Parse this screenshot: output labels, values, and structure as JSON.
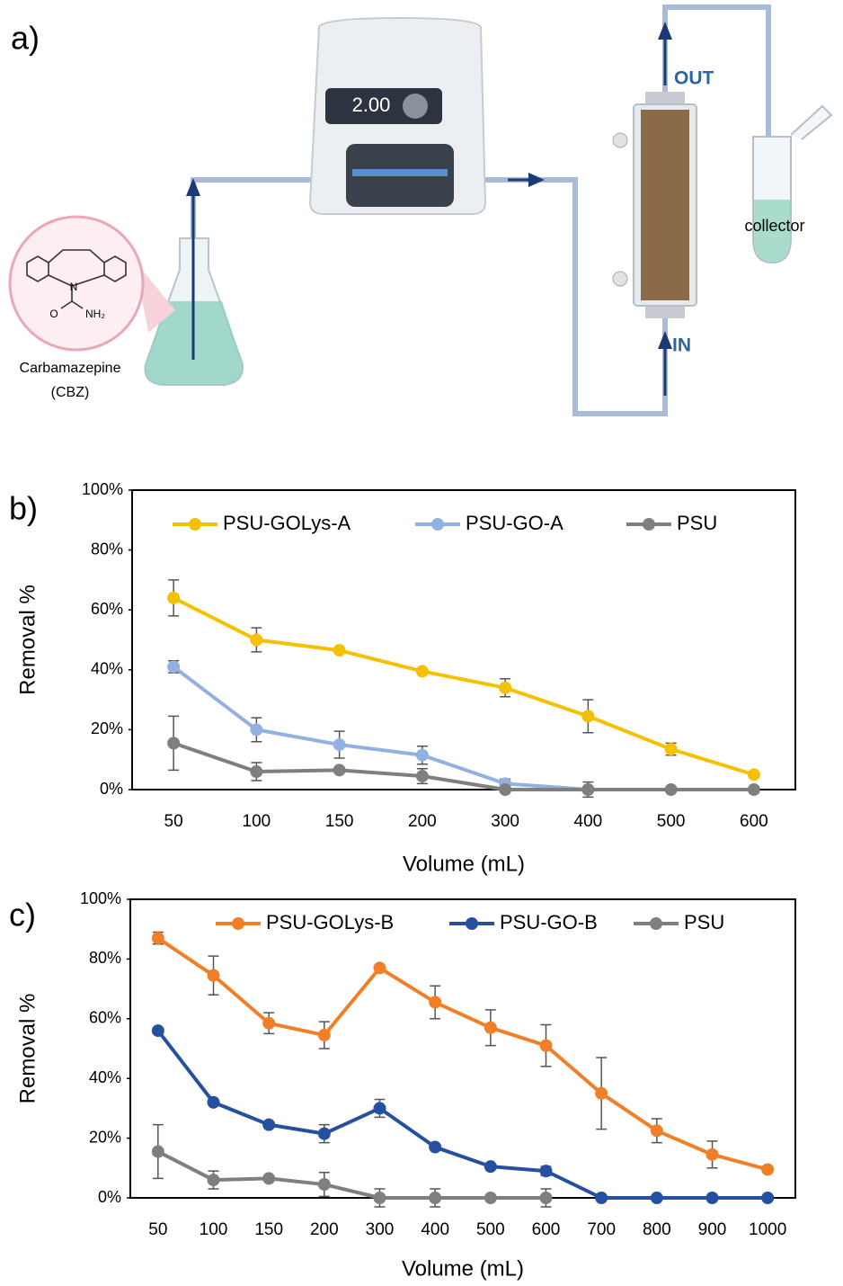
{
  "diagram": {
    "panel_label": "a)",
    "pump_display": "2.00",
    "out_label": "OUT",
    "in_label": "IN",
    "collector_label": "collector",
    "molecule": {
      "name": "Carbamazepine",
      "abbreviation": "(CBZ)",
      "atoms": [
        "N",
        "O",
        "NH₂"
      ]
    }
  },
  "chart_data": [
    {
      "type": "line",
      "panel_label": "b)",
      "xlabel": "Volume (mL)",
      "ylabel": "Removal %",
      "legend": "top",
      "categories": [
        "50",
        "100",
        "150",
        "200",
        "300",
        "400",
        "500",
        "600"
      ],
      "ylim": [
        0,
        100
      ],
      "yticks": [
        {
          "value": 0,
          "label": "0%"
        },
        {
          "value": 20,
          "label": "20%"
        },
        {
          "value": 40,
          "label": "40%"
        },
        {
          "value": 60,
          "label": "60%"
        },
        {
          "value": 80,
          "label": "80%"
        },
        {
          "value": 100,
          "label": "100%"
        }
      ],
      "series": [
        {
          "name": "PSU-GOLys-A",
          "color": "#f5c000",
          "values": [
            64,
            50,
            46.5,
            39.5,
            34,
            24.5,
            13.5,
            5
          ],
          "errors": [
            6,
            4,
            0.5,
            0.5,
            3,
            5.5,
            2,
            0.5
          ]
        },
        {
          "name": "PSU-GO-A",
          "color": "#92b1e2",
          "values": [
            41,
            20,
            15,
            11.5,
            2,
            0,
            null,
            null
          ],
          "errors": [
            2,
            4,
            4.5,
            3,
            1.5,
            0,
            null,
            null
          ]
        },
        {
          "name": "PSU",
          "color": "#7f7f7f",
          "values": [
            15.5,
            6,
            6.5,
            4.5,
            0,
            0,
            0,
            0
          ],
          "errors": [
            9,
            3,
            0.5,
            2.5,
            0,
            2.5,
            0,
            0
          ]
        }
      ]
    },
    {
      "type": "line",
      "panel_label": "c)",
      "xlabel": "Volume (mL)",
      "ylabel": "Removal %",
      "legend": "top",
      "categories": [
        "50",
        "100",
        "150",
        "200",
        "300",
        "400",
        "500",
        "600",
        "700",
        "800",
        "900",
        "1000"
      ],
      "ylim": [
        0,
        100
      ],
      "yticks": [
        {
          "value": 0,
          "label": "0%"
        },
        {
          "value": 20,
          "label": "20%"
        },
        {
          "value": 40,
          "label": "40%"
        },
        {
          "value": 60,
          "label": "60%"
        },
        {
          "value": 80,
          "label": "80%"
        },
        {
          "value": 100,
          "label": "100%"
        }
      ],
      "series": [
        {
          "name": "PSU-GOLys-B",
          "color": "#f07f28",
          "values": [
            87,
            74.5,
            58.5,
            54.5,
            77,
            65.5,
            57,
            51,
            35,
            22.5,
            14.5,
            9.5
          ],
          "errors": [
            2,
            6.5,
            3.5,
            4.5,
            0.5,
            5.5,
            6,
            7,
            12,
            4,
            4.5,
            0.5
          ]
        },
        {
          "name": "PSU-GO-B",
          "color": "#2550a0",
          "values": [
            56,
            32,
            24.5,
            21.5,
            30,
            17,
            10.5,
            9,
            0,
            0,
            0,
            0
          ],
          "errors": [
            0.5,
            0.5,
            0.5,
            3,
            3,
            0.5,
            0.5,
            1.5,
            0,
            0,
            0,
            0
          ]
        },
        {
          "name": "PSU",
          "color": "#7f7f7f",
          "values": [
            15.5,
            6,
            6.5,
            4.5,
            0,
            0,
            0,
            0,
            null,
            null,
            null,
            null
          ],
          "errors": [
            9,
            3,
            0,
            4,
            3,
            3,
            0,
            3,
            null,
            null,
            null,
            null
          ]
        }
      ]
    }
  ]
}
